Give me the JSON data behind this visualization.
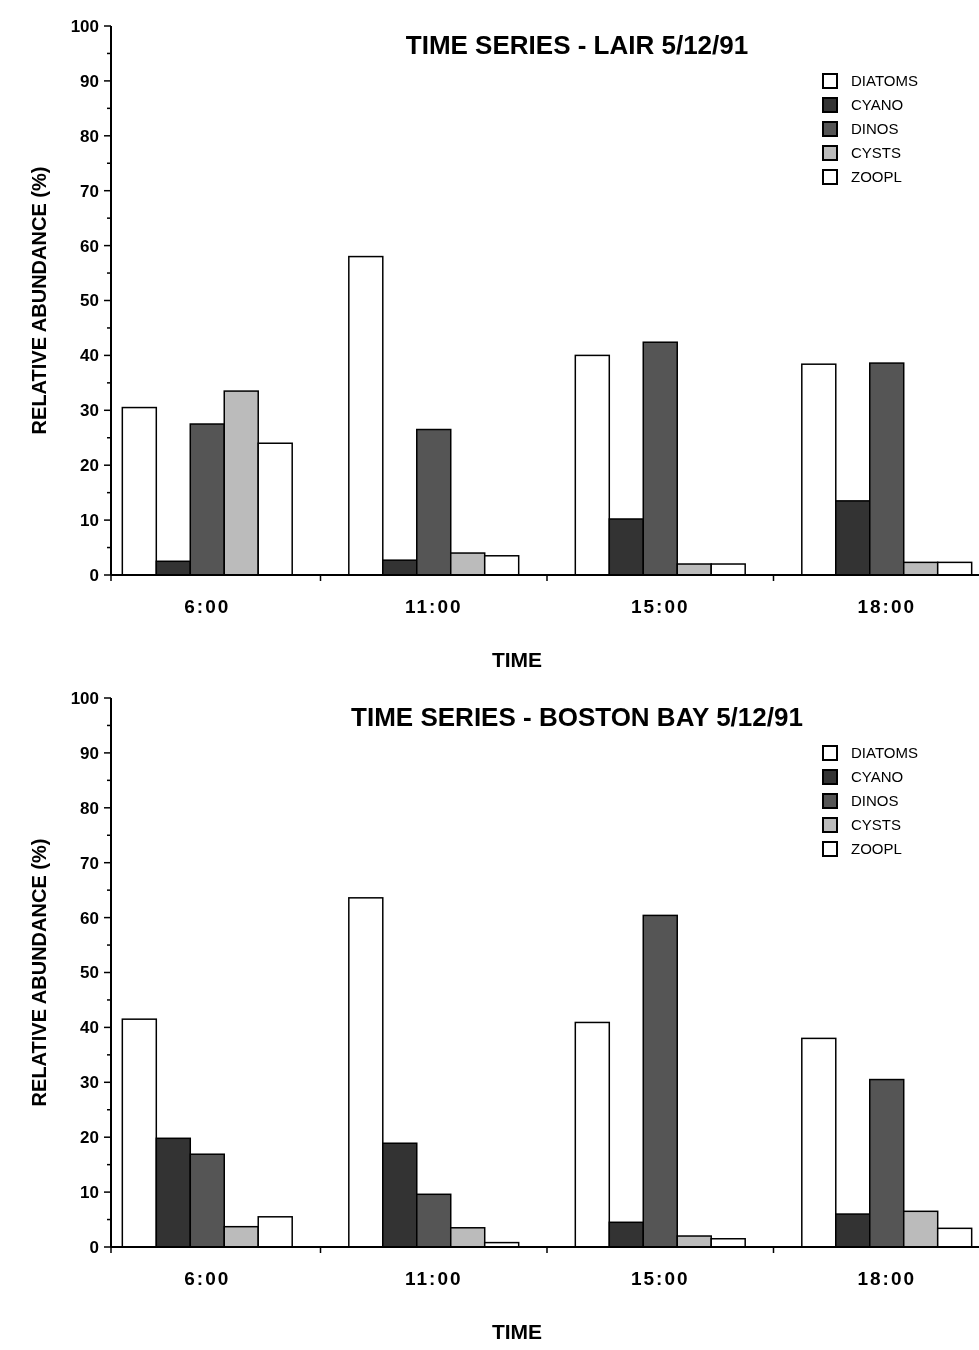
{
  "chart_data": [
    {
      "type": "bar",
      "title": "TIME SERIES - LAIR 5/12/91",
      "xlabel": "TIME",
      "ylabel": "RELATIVE ABUNDANCE (%)",
      "categories": [
        "6:00",
        "11:00",
        "15:00",
        "18:00"
      ],
      "series": [
        {
          "name": "DIATOMS",
          "color": "#ffffff",
          "values": [
            30.5,
            58,
            40,
            38.4
          ]
        },
        {
          "name": "CYANO",
          "color": "#333333",
          "values": [
            2.5,
            2.7,
            10.2,
            13.5
          ]
        },
        {
          "name": "DINOS",
          "color": "#555555",
          "values": [
            27.5,
            26.5,
            42.4,
            38.6
          ]
        },
        {
          "name": "CYSTS",
          "color": "#bbbbbb",
          "values": [
            33.5,
            4,
            2,
            2.3
          ]
        },
        {
          "name": "ZOOPL",
          "color": "#ffffff",
          "values": [
            24,
            3.5,
            2,
            2.3
          ]
        }
      ],
      "ylim": [
        0,
        100
      ],
      "yticks": [
        0,
        {
          "value": 5,
          "label": null
        },
        10,
        {
          "value": 15,
          "label": null
        },
        20,
        {
          "value": 25,
          "label": null
        },
        30,
        {
          "value": 35,
          "label": null
        },
        40,
        {
          "value": 45,
          "label": null
        },
        50,
        {
          "value": 55,
          "label": null
        },
        60,
        {
          "value": 65,
          "label": null
        },
        70,
        {
          "value": 75,
          "label": null
        },
        80,
        {
          "value": 85,
          "label": null
        },
        90,
        {
          "value": 95,
          "label": null
        },
        100
      ],
      "legend": "top right"
    },
    {
      "type": "bar",
      "title": "TIME SERIES - BOSTON BAY 5/12/91",
      "xlabel": "TIME",
      "ylabel": "RELATIVE ABUNDANCE (%)",
      "categories": [
        "6:00",
        "11:00",
        "15:00",
        "18:00"
      ],
      "series": [
        {
          "name": "DIATOMS",
          "color": "#ffffff",
          "values": [
            41.5,
            63.6,
            40.9,
            38
          ]
        },
        {
          "name": "CYANO",
          "color": "#333333",
          "values": [
            19.8,
            18.9,
            4.5,
            6
          ]
        },
        {
          "name": "DINOS",
          "color": "#555555",
          "values": [
            16.9,
            9.6,
            60.4,
            30.5
          ]
        },
        {
          "name": "CYSTS",
          "color": "#bbbbbb",
          "values": [
            3.7,
            3.5,
            2,
            6.5
          ]
        },
        {
          "name": "ZOOPL",
          "color": "#ffffff",
          "values": [
            5.5,
            0.8,
            1.5,
            3.4
          ]
        }
      ],
      "ylim": [
        0,
        100
      ],
      "yticks": [
        0,
        {
          "value": 5,
          "label": null
        },
        10,
        {
          "value": 15,
          "label": null
        },
        20,
        {
          "value": 25,
          "label": null
        },
        30,
        {
          "value": 35,
          "label": null
        },
        40,
        {
          "value": 45,
          "label": null
        },
        50,
        {
          "value": 55,
          "label": null
        },
        60,
        {
          "value": 65,
          "label": null
        },
        70,
        {
          "value": 75,
          "label": null
        },
        80,
        {
          "value": 85,
          "label": null
        },
        90,
        {
          "value": 95,
          "label": null
        },
        100
      ],
      "legend": "top right"
    }
  ]
}
